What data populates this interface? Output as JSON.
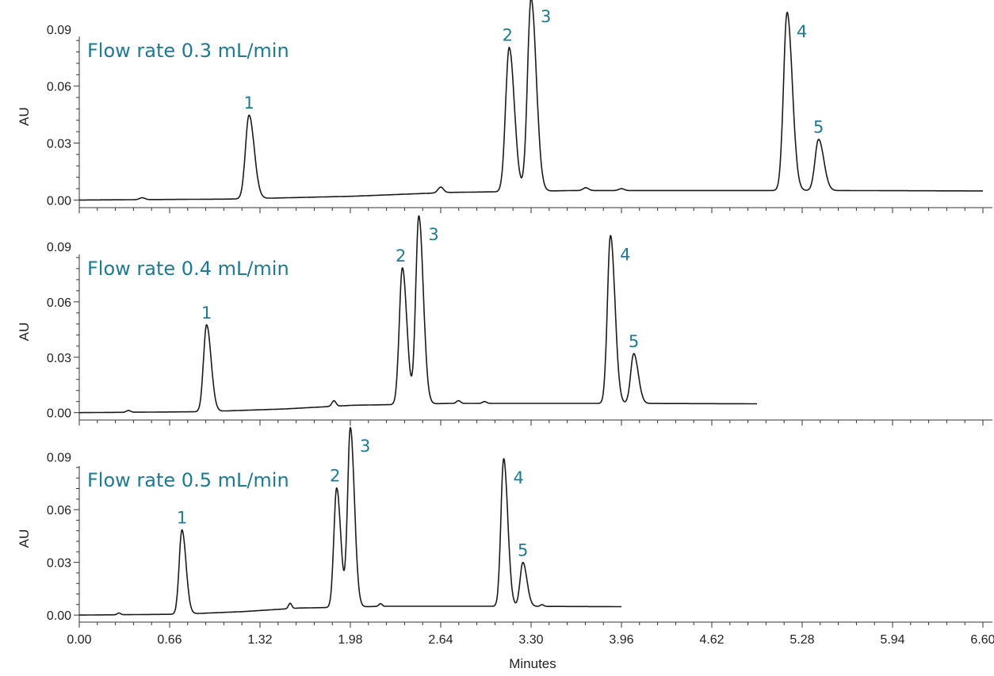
{
  "chart_data": {
    "type": "line",
    "xlabel": "Minutes",
    "xlim": [
      0,
      6.6
    ],
    "xticks": [
      "0.00",
      "0.66",
      "1.32",
      "1.98",
      "2.64",
      "3.30",
      "3.96",
      "4.62",
      "5.28",
      "5.94",
      "6.60"
    ],
    "panels": [
      {
        "title": "Flow rate 0.3 mL/min",
        "ylabel": "AU",
        "ylim": [
          -0.004,
          0.102
        ],
        "yticks": [
          "0.00",
          "0.03",
          "0.06",
          "0.09"
        ],
        "x_end": 6.6,
        "baseline": [
          [
            0,
            0.0
          ],
          [
            1.1,
            0.0005
          ],
          [
            2.0,
            0.002
          ],
          [
            2.7,
            0.004
          ],
          [
            3.2,
            0.0045
          ],
          [
            3.6,
            0.005
          ],
          [
            4.5,
            0.005
          ],
          [
            5.0,
            0.005
          ],
          [
            5.6,
            0.005
          ],
          [
            6.6,
            0.0048
          ]
        ],
        "minor_peaks": [
          [
            0.46,
            0.001,
            0.02
          ],
          [
            2.64,
            0.003,
            0.02
          ],
          [
            3.7,
            0.0015,
            0.02
          ],
          [
            3.96,
            0.001,
            0.02
          ]
        ],
        "peaks": [
          {
            "label": "1",
            "rt": 1.24,
            "height": 0.044
          },
          {
            "label": "2",
            "rt": 3.14,
            "height": 0.076
          },
          {
            "label": "3",
            "rt": 3.3,
            "height": 0.102
          },
          {
            "label": "4",
            "rt": 5.17,
            "height": 0.094
          },
          {
            "label": "5",
            "rt": 5.4,
            "height": 0.027
          }
        ]
      },
      {
        "title": "Flow rate 0.4 mL/min",
        "ylabel": "AU",
        "ylim": [
          -0.004,
          0.102
        ],
        "yticks": [
          "0.00",
          "0.03",
          "0.06",
          "0.09"
        ],
        "x_end": 4.95,
        "baseline": [
          [
            0,
            0.0
          ],
          [
            0.9,
            0.0005
          ],
          [
            1.5,
            0.002
          ],
          [
            2.0,
            0.004
          ],
          [
            2.4,
            0.0045
          ],
          [
            2.7,
            0.005
          ],
          [
            3.5,
            0.005
          ],
          [
            4.0,
            0.005
          ],
          [
            4.95,
            0.0048
          ]
        ],
        "minor_peaks": [
          [
            0.36,
            0.001,
            0.015
          ],
          [
            1.86,
            0.003,
            0.015
          ],
          [
            2.77,
            0.0015,
            0.015
          ],
          [
            2.96,
            0.001,
            0.015
          ]
        ],
        "peaks": [
          {
            "label": "1",
            "rt": 0.93,
            "height": 0.047
          },
          {
            "label": "2",
            "rt": 2.36,
            "height": 0.074
          },
          {
            "label": "3",
            "rt": 2.48,
            "height": 0.102
          },
          {
            "label": "4",
            "rt": 3.88,
            "height": 0.091
          },
          {
            "label": "5",
            "rt": 4.05,
            "height": 0.027
          }
        ]
      },
      {
        "title": "Flow rate 0.5 mL/min",
        "ylabel": "AU",
        "ylim": [
          -0.004,
          0.102
        ],
        "yticks": [
          "0.00",
          "0.03",
          "0.06",
          "0.09"
        ],
        "x_end": 3.96,
        "baseline": [
          [
            0,
            0.0
          ],
          [
            0.74,
            0.0005
          ],
          [
            1.2,
            0.002
          ],
          [
            1.6,
            0.004
          ],
          [
            1.95,
            0.0045
          ],
          [
            2.2,
            0.005
          ],
          [
            2.8,
            0.005
          ],
          [
            3.2,
            0.005
          ],
          [
            3.96,
            0.0048
          ]
        ],
        "minor_peaks": [
          [
            0.29,
            0.001,
            0.012
          ],
          [
            1.54,
            0.003,
            0.012
          ],
          [
            2.2,
            0.0015,
            0.012
          ],
          [
            3.38,
            0.001,
            0.012
          ]
        ],
        "peaks": [
          {
            "label": "1",
            "rt": 0.75,
            "height": 0.048
          },
          {
            "label": "2",
            "rt": 1.88,
            "height": 0.068
          },
          {
            "label": "3",
            "rt": 1.98,
            "height": 0.102
          },
          {
            "label": "4",
            "rt": 3.1,
            "height": 0.084
          },
          {
            "label": "5",
            "rt": 3.24,
            "height": 0.025
          }
        ]
      }
    ]
  }
}
